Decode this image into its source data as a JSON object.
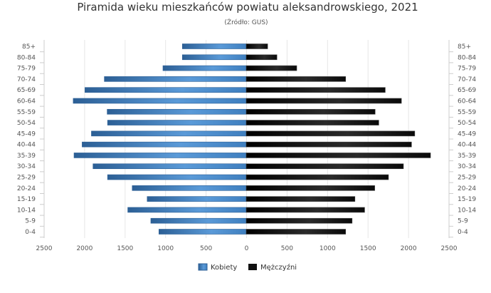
{
  "chart_data": {
    "type": "bar",
    "orientation": "horizontal-population-pyramid",
    "title": "Piramida wieku mieszkańców powiatu aleksandrowskiego, 2021",
    "subtitle": "(Źródło: GUS)",
    "categories": [
      "85+",
      "80-84",
      "75-79",
      "70-74",
      "65-69",
      "60-64",
      "55-59",
      "50-54",
      "45-49",
      "40-44",
      "35-39",
      "30-34",
      "25-29",
      "20-24",
      "15-19",
      "10-14",
      "5-9",
      "0-4"
    ],
    "series": [
      {
        "name": "Kobiety",
        "color": "#3f7fbf",
        "side": "left",
        "values": [
          790,
          790,
          1030,
          1755,
          1995,
          2140,
          1720,
          1715,
          1915,
          2030,
          2130,
          1895,
          1715,
          1410,
          1225,
          1465,
          1180,
          1080
        ]
      },
      {
        "name": "Mężczyźni",
        "color": "#111111",
        "side": "right",
        "values": [
          265,
          380,
          625,
          1230,
          1720,
          1920,
          1595,
          1640,
          2085,
          2045,
          2280,
          1945,
          1760,
          1590,
          1345,
          1465,
          1310,
          1230
        ]
      }
    ],
    "xticks": [
      "2500",
      "2000",
      "1500",
      "1000",
      "500",
      "0",
      "500",
      "1000",
      "1500",
      "2000",
      "2500"
    ],
    "xlim": [
      -2500,
      2500
    ],
    "grid": true,
    "legend": "bottom"
  }
}
